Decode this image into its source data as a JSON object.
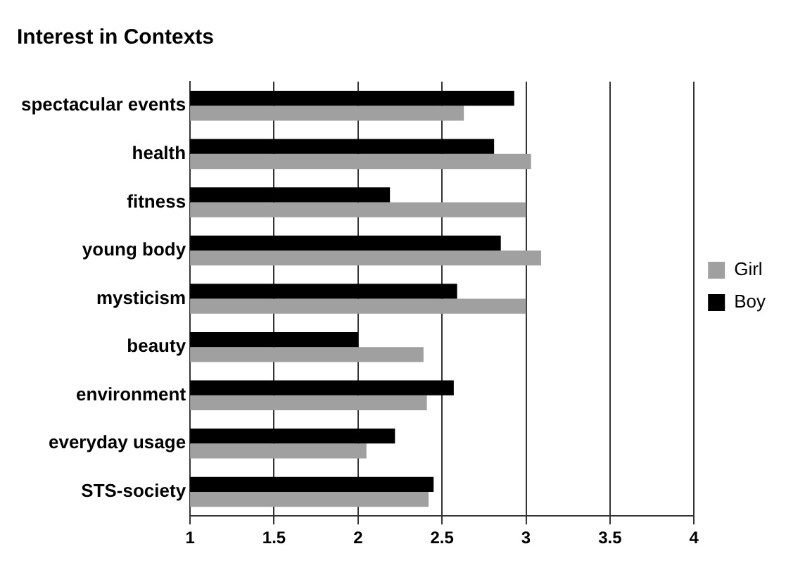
{
  "chart_data": {
    "type": "bar",
    "orientation": "horizontal",
    "title": "Interest in Contexts",
    "categories": [
      "spectacular events",
      "health",
      "fitness",
      "young body",
      "mysticism",
      "beauty",
      "environment",
      "everyday usage",
      "STS-society"
    ],
    "series": [
      {
        "name": "Boy",
        "color": "#000000",
        "values": [
          2.93,
          2.81,
          2.19,
          2.85,
          2.59,
          2.0,
          2.57,
          2.22,
          2.45
        ]
      },
      {
        "name": "Girl",
        "color": "#a0a0a0",
        "values": [
          2.63,
          3.03,
          3.0,
          3.09,
          3.0,
          2.39,
          2.41,
          2.05,
          2.42
        ]
      }
    ],
    "xlim": [
      1,
      4
    ],
    "xticks": [
      1,
      1.5,
      2,
      2.5,
      3,
      3.5,
      4
    ],
    "grid": "x",
    "legend": "right"
  }
}
